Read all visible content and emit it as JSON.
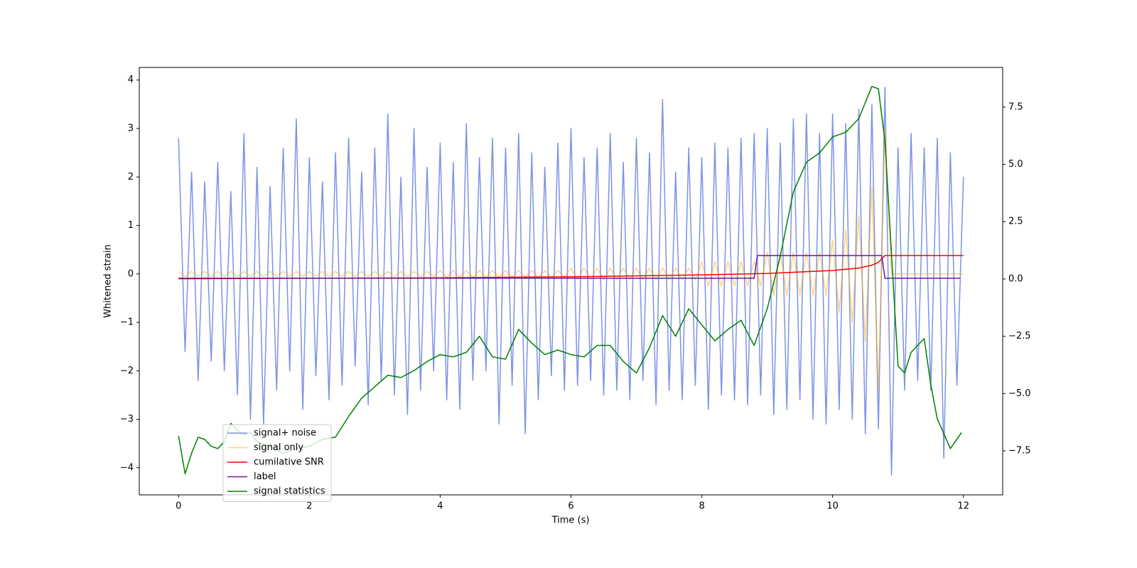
{
  "chart_data": {
    "type": "line",
    "xlabel": "Time (s)",
    "ylabel": "Whitened strain",
    "xlim": [
      -0.6,
      12.6
    ],
    "ylim": [
      -4.56,
      4.26
    ],
    "y2lim": [
      -9.42,
      9.23
    ],
    "xticks": [
      0,
      2,
      4,
      6,
      8,
      10,
      12
    ],
    "yticks": [
      {
        "value": -4,
        "label": "−4"
      },
      {
        "value": -3,
        "label": "−3"
      },
      {
        "value": -2,
        "label": "−2"
      },
      {
        "value": -1,
        "label": "−1"
      },
      0,
      1,
      2,
      3,
      4
    ],
    "y2ticks": [
      {
        "value": -7.5,
        "label": "−7.5"
      },
      {
        "value": -5,
        "label": "−5.0"
      },
      {
        "value": -2.5,
        "label": "−2.5"
      },
      {
        "value": 0,
        "label": "0.0"
      },
      2.5,
      {
        "value": 5,
        "label": "5.0"
      },
      7.5
    ],
    "legend": "lower left",
    "series": [
      {
        "name": "signal+ noise",
        "color": "#7b93e8",
        "axis": "y",
        "x": [
          0,
          0.1,
          0.2,
          0.3,
          0.4,
          0.5,
          0.6,
          0.7,
          0.8,
          0.9,
          1,
          1.1,
          1.2,
          1.3,
          1.4,
          1.5,
          1.6,
          1.7,
          1.8,
          1.9,
          2,
          2.1,
          2.2,
          2.3,
          2.4,
          2.5,
          2.6,
          2.7,
          2.8,
          2.9,
          3,
          3.1,
          3.2,
          3.3,
          3.4,
          3.5,
          3.6,
          3.7,
          3.8,
          3.9,
          4,
          4.1,
          4.2,
          4.3,
          4.4,
          4.5,
          4.6,
          4.7,
          4.8,
          4.9,
          5,
          5.1,
          5.2,
          5.3,
          5.4,
          5.5,
          5.6,
          5.7,
          5.8,
          5.9,
          6,
          6.1,
          6.2,
          6.3,
          6.4,
          6.5,
          6.6,
          6.7,
          6.8,
          6.9,
          7,
          7.1,
          7.2,
          7.3,
          7.4,
          7.5,
          7.6,
          7.7,
          7.8,
          7.9,
          8,
          8.1,
          8.2,
          8.3,
          8.4,
          8.5,
          8.6,
          8.7,
          8.8,
          8.9,
          9,
          9.1,
          9.2,
          9.3,
          9.4,
          9.5,
          9.6,
          9.7,
          9.8,
          9.9,
          10,
          10.1,
          10.2,
          10.3,
          10.4,
          10.5,
          10.6,
          10.7,
          10.8,
          10.9,
          11,
          11.1,
          11.2,
          11.3,
          11.4,
          11.5,
          11.6,
          11.7,
          11.8,
          11.9,
          12
        ],
        "values": [
          2.8,
          -1.6,
          2.1,
          -2.2,
          1.9,
          -1.8,
          2.3,
          -2.0,
          1.7,
          -2.5,
          2.9,
          -3.0,
          2.2,
          -3.1,
          1.8,
          -2.4,
          2.6,
          -2.0,
          3.2,
          -2.8,
          2.4,
          -2.1,
          1.9,
          -2.6,
          2.5,
          -2.3,
          2.8,
          -1.9,
          2.1,
          -2.7,
          2.6,
          -2.2,
          3.3,
          -2.5,
          2.0,
          -2.9,
          3.0,
          -2.4,
          2.2,
          -2.0,
          2.7,
          -2.6,
          2.3,
          -2.8,
          3.1,
          -2.2,
          2.4,
          -2.0,
          2.8,
          -3.1,
          2.6,
          -2.3,
          2.9,
          -3.3,
          2.5,
          -2.6,
          2.2,
          -2.1,
          2.7,
          -2.4,
          3.0,
          -2.3,
          2.4,
          -2.2,
          2.6,
          -2.5,
          2.9,
          -2.4,
          2.3,
          -2.6,
          2.8,
          -2.2,
          2.5,
          -2.7,
          3.6,
          -2.4,
          2.1,
          -2.6,
          2.6,
          -2.3,
          2.4,
          -2.8,
          2.7,
          -2.5,
          2.6,
          -2.6,
          2.8,
          -2.7,
          2.9,
          -2.5,
          3.0,
          -2.9,
          2.7,
          -2.8,
          3.2,
          -2.6,
          3.3,
          -3.0,
          2.9,
          -3.1,
          3.3,
          -2.8,
          3.1,
          -3.0,
          3.4,
          -3.3,
          3.5,
          -3.2,
          3.85,
          -4.15,
          2.6,
          -2.4,
          2.9,
          -2.2,
          2.6,
          -2.4,
          2.8,
          -3.8,
          2.5,
          -2.3,
          2.0
        ]
      },
      {
        "name": "signal only",
        "color": "#ffa500",
        "axis": "y",
        "x": [
          0,
          0.1,
          0.2,
          0.3,
          0.4,
          0.5,
          0.6,
          0.7,
          0.8,
          0.9,
          1,
          1.1,
          1.2,
          1.3,
          1.4,
          1.5,
          1.6,
          1.7,
          1.8,
          1.9,
          2,
          2.1,
          2.2,
          2.3,
          2.4,
          2.5,
          2.6,
          2.7,
          2.8,
          2.9,
          3,
          3.1,
          3.2,
          3.3,
          3.4,
          3.5,
          3.6,
          3.7,
          3.8,
          3.9,
          4,
          4.1,
          4.2,
          4.3,
          4.4,
          4.5,
          4.6,
          4.7,
          4.8,
          4.9,
          5,
          5.1,
          5.2,
          5.3,
          5.4,
          5.5,
          5.6,
          5.7,
          5.8,
          5.9,
          6,
          6.1,
          6.2,
          6.3,
          6.4,
          6.5,
          6.6,
          6.7,
          6.8,
          6.9,
          7,
          7.1,
          7.2,
          7.3,
          7.4,
          7.5,
          7.6,
          7.7,
          7.8,
          7.9,
          8,
          8.1,
          8.2,
          8.3,
          8.4,
          8.5,
          8.6,
          8.7,
          8.8,
          8.9,
          9,
          9.1,
          9.2,
          9.3,
          9.4,
          9.5,
          9.6,
          9.7,
          9.8,
          9.9,
          10,
          10.1,
          10.2,
          10.3,
          10.4,
          10.5,
          10.6,
          10.7,
          10.8,
          10.9,
          11,
          11.1,
          11.2,
          11.3,
          11.4,
          11.5,
          11.6,
          11.7,
          11.8,
          11.9,
          12
        ],
        "values": [
          0.05,
          -0.05,
          0.05,
          -0.05,
          0.05,
          -0.05,
          0.05,
          -0.05,
          0.05,
          -0.05,
          0.05,
          -0.05,
          0.05,
          -0.05,
          0.05,
          -0.05,
          0.05,
          -0.05,
          0.05,
          -0.05,
          0.05,
          -0.05,
          0.05,
          -0.05,
          0.05,
          -0.05,
          0.05,
          -0.05,
          0.05,
          -0.05,
          0.05,
          -0.05,
          0.05,
          -0.05,
          0.05,
          -0.05,
          0.05,
          -0.05,
          0.05,
          -0.05,
          0.07,
          -0.07,
          0.07,
          -0.07,
          0.07,
          -0.07,
          0.07,
          -0.07,
          0.07,
          -0.07,
          0.07,
          -0.07,
          0.07,
          -0.07,
          0.07,
          -0.07,
          0.07,
          -0.07,
          0.07,
          -0.07,
          0.12,
          -0.12,
          0.12,
          -0.12,
          0.12,
          -0.12,
          0.12,
          -0.12,
          0.12,
          -0.12,
          0.12,
          -0.12,
          0.12,
          -0.12,
          0.12,
          -0.12,
          0.12,
          -0.12,
          0.12,
          -0.12,
          0.25,
          -0.25,
          0.25,
          -0.25,
          0.25,
          -0.25,
          0.25,
          -0.25,
          0.25,
          -0.25,
          0.45,
          -0.45,
          0.45,
          -0.45,
          0.45,
          -0.45,
          0.45,
          -0.45,
          0.45,
          -0.45,
          0.7,
          -0.8,
          0.9,
          -1.0,
          1.2,
          -1.4,
          1.8,
          -2.4,
          3.0,
          0,
          0,
          0,
          0,
          0,
          0,
          0,
          0,
          0,
          0,
          0,
          0
        ]
      },
      {
        "name": "cumilative SNR",
        "color": "#ff0000",
        "axis": "y",
        "x": [
          0,
          2,
          4,
          6,
          8,
          9,
          10,
          10.4,
          10.6,
          10.7,
          10.8,
          11,
          12
        ],
        "values": [
          -0.1,
          -0.09,
          -0.08,
          -0.06,
          -0.02,
          0.01,
          0.07,
          0.12,
          0.18,
          0.24,
          0.38,
          0.38,
          0.38
        ]
      },
      {
        "name": "label",
        "color": "#6a1b9a",
        "axis": "y",
        "x": [
          0,
          8.8,
          8.85,
          10.75,
          10.8,
          11.95
        ],
        "values": [
          -0.09,
          -0.09,
          0.38,
          0.38,
          -0.09,
          -0.09
        ]
      },
      {
        "name": "signal statistics",
        "color": "#008000",
        "axis": "y2",
        "x": [
          0,
          0.1,
          0.2,
          0.3,
          0.4,
          0.5,
          0.6,
          0.7,
          0.8,
          0.9,
          1.0,
          1.1,
          1.2,
          1.4,
          1.6,
          1.8,
          2.0,
          2.2,
          2.4,
          2.6,
          2.8,
          3.0,
          3.2,
          3.4,
          3.6,
          3.8,
          4.0,
          4.2,
          4.4,
          4.6,
          4.8,
          5.0,
          5.2,
          5.4,
          5.6,
          5.8,
          6.0,
          6.2,
          6.4,
          6.6,
          6.8,
          7.0,
          7.2,
          7.4,
          7.6,
          7.8,
          8.0,
          8.2,
          8.4,
          8.6,
          8.8,
          9.0,
          9.2,
          9.4,
          9.6,
          9.8,
          10.0,
          10.2,
          10.4,
          10.6,
          10.7,
          10.8,
          11.0,
          11.1,
          11.2,
          11.4,
          11.5,
          11.6,
          11.8,
          11.97
        ],
        "values": [
          -6.85,
          -8.5,
          -7.6,
          -6.9,
          -7.0,
          -7.3,
          -7.4,
          -7.1,
          -6.3,
          -6.6,
          -6.8,
          -6.7,
          -7.1,
          -7.3,
          -7.6,
          -7.4,
          -7.3,
          -7.0,
          -6.9,
          -6.0,
          -5.2,
          -4.7,
          -4.2,
          -4.3,
          -4.0,
          -3.6,
          -3.3,
          -3.4,
          -3.2,
          -2.5,
          -3.4,
          -3.5,
          -2.2,
          -2.8,
          -3.3,
          -3.1,
          -3.3,
          -3.4,
          -2.9,
          -2.9,
          -3.6,
          -4.1,
          -3.0,
          -1.6,
          -2.5,
          -1.3,
          -2.0,
          -2.7,
          -2.2,
          -1.8,
          -2.9,
          -1.3,
          1.0,
          3.8,
          5.1,
          5.5,
          6.2,
          6.4,
          7.0,
          8.4,
          8.3,
          6.0,
          -3.8,
          -4.1,
          -3.2,
          -2.6,
          -4.6,
          -6.1,
          -7.4,
          -6.7
        ]
      }
    ]
  }
}
